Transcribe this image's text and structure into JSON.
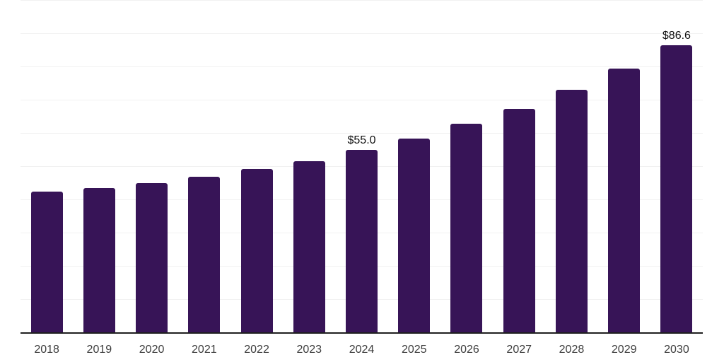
{
  "chart_data": {
    "type": "bar",
    "title": "",
    "xlabel": "",
    "ylabel": "",
    "categories": [
      "2018",
      "2019",
      "2020",
      "2021",
      "2022",
      "2023",
      "2024",
      "2025",
      "2026",
      "2027",
      "2028",
      "2029",
      "2030"
    ],
    "values": [
      42.5,
      43.7,
      45.1,
      47.1,
      49.3,
      51.7,
      55.0,
      58.5,
      62.9,
      67.5,
      73.1,
      79.6,
      86.6
    ],
    "point_labels": [
      "",
      "",
      "",
      "",
      "",
      "",
      "$55.0",
      "",
      "",
      "",
      "",
      "",
      "$86.6"
    ],
    "ylim": [
      0,
      100
    ],
    "gridline_step": 10,
    "grid": true,
    "y_axis_labels_visible": false,
    "legend_position": "none"
  },
  "colors": {
    "bar": "#371457",
    "gridline": "#f1f1f1",
    "axis_line": "#1f1f1f",
    "tick_label": "#3d3d3d",
    "value_label": "#0f0f0f",
    "background": "#ffffff"
  }
}
